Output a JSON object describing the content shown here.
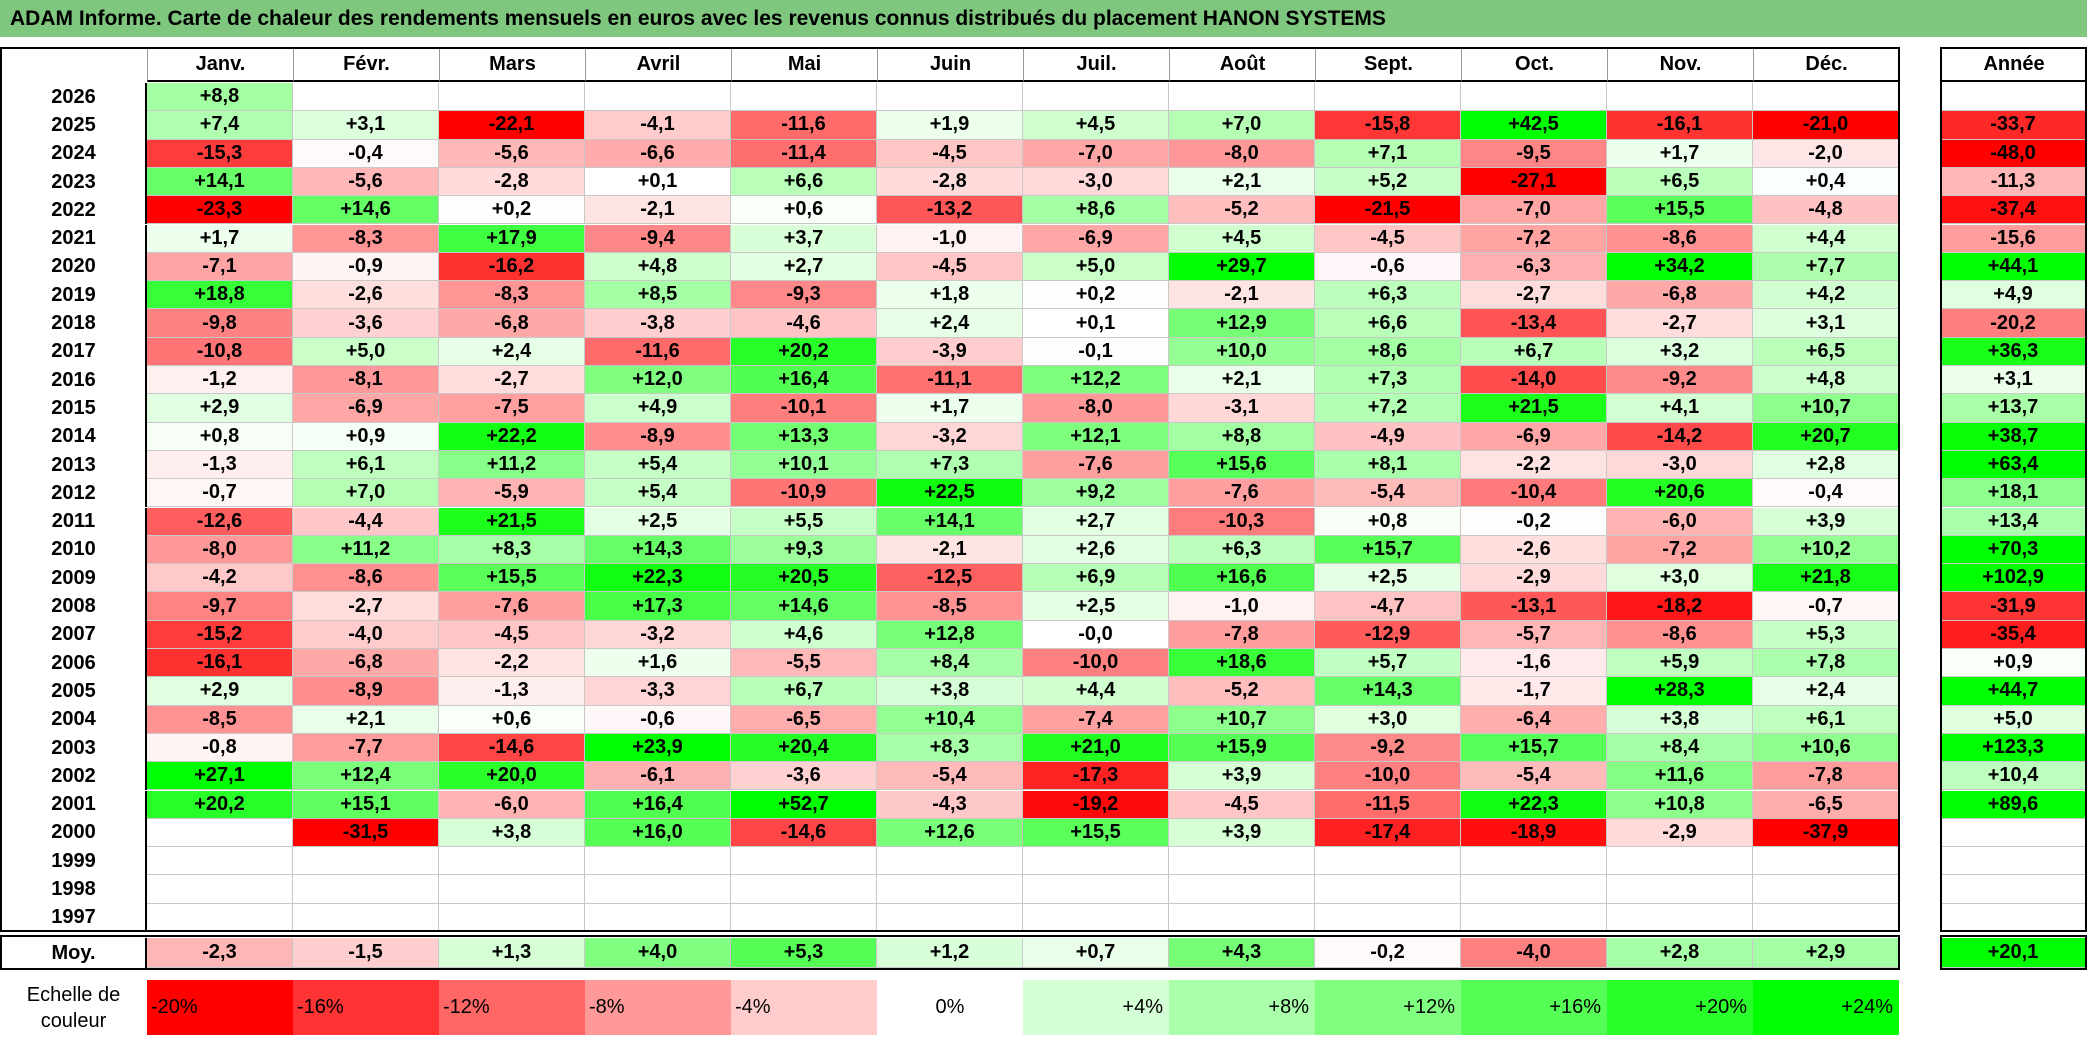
{
  "title": "ADAM Informe. Carte de chaleur des rendements mensuels en euros avec les revenus connus distribués du placement HANON SYSTEMS",
  "colors": {
    "title_bg": "#7fc77f",
    "neg_strong": "#ff0000",
    "pos_strong": "#00ff00",
    "neutral": "#ffffff"
  },
  "chart_data": {
    "type": "heatmap",
    "title": "ADAM Informe. Carte de chaleur des rendements mensuels en euros avec les revenus connus distribués du placement HANON SYSTEMS",
    "columns": [
      "Janv.",
      "Févr.",
      "Mars",
      "Avril",
      "Mai",
      "Juin",
      "Juil.",
      "Août",
      "Sept.",
      "Oct.",
      "Nov.",
      "Déc."
    ],
    "year_label": "Année",
    "rows": [
      {
        "year": "2026",
        "values": [
          "+8,8",
          "",
          "",
          "",
          "",
          "",
          "",
          "",
          "",
          "",
          "",
          ""
        ],
        "annual": ""
      },
      {
        "year": "2025",
        "values": [
          "+7,4",
          "+3,1",
          "-22,1",
          "-4,1",
          "-11,6",
          "+1,9",
          "+4,5",
          "+7,0",
          "-15,8",
          "+42,5",
          "-16,1",
          "-21,0"
        ],
        "annual": "-33,7"
      },
      {
        "year": "2024",
        "values": [
          "-15,3",
          "-0,4",
          "-5,6",
          "-6,6",
          "-11,4",
          "-4,5",
          "-7,0",
          "-8,0",
          "+7,1",
          "-9,5",
          "+1,7",
          "-2,0"
        ],
        "annual": "-48,0"
      },
      {
        "year": "2023",
        "values": [
          "+14,1",
          "-5,6",
          "-2,8",
          "+0,1",
          "+6,6",
          "-2,8",
          "-3,0",
          "+2,1",
          "+5,2",
          "-27,1",
          "+6,5",
          "+0,4"
        ],
        "annual": "-11,3"
      },
      {
        "year": "2022",
        "values": [
          "-23,3",
          "+14,6",
          "+0,2",
          "-2,1",
          "+0,6",
          "-13,2",
          "+8,6",
          "-5,2",
          "-21,5",
          "-7,0",
          "+15,5",
          "-4,8"
        ],
        "annual": "-37,4"
      },
      {
        "year": "2021",
        "values": [
          "+1,7",
          "-8,3",
          "+17,9",
          "-9,4",
          "+3,7",
          "-1,0",
          "-6,9",
          "+4,5",
          "-4,5",
          "-7,2",
          "-8,6",
          "+4,4"
        ],
        "annual": "-15,6"
      },
      {
        "year": "2020",
        "values": [
          "-7,1",
          "-0,9",
          "-16,2",
          "+4,8",
          "+2,7",
          "-4,5",
          "+5,0",
          "+29,7",
          "-0,6",
          "-6,3",
          "+34,2",
          "+7,7"
        ],
        "annual": "+44,1"
      },
      {
        "year": "2019",
        "values": [
          "+18,8",
          "-2,6",
          "-8,3",
          "+8,5",
          "-9,3",
          "+1,8",
          "+0,2",
          "-2,1",
          "+6,3",
          "-2,7",
          "-6,8",
          "+4,2"
        ],
        "annual": "+4,9"
      },
      {
        "year": "2018",
        "values": [
          "-9,8",
          "-3,6",
          "-6,8",
          "-3,8",
          "-4,6",
          "+2,4",
          "+0,1",
          "+12,9",
          "+6,6",
          "-13,4",
          "-2,7",
          "+3,1"
        ],
        "annual": "-20,2"
      },
      {
        "year": "2017",
        "values": [
          "-10,8",
          "+5,0",
          "+2,4",
          "-11,6",
          "+20,2",
          "-3,9",
          "-0,1",
          "+10,0",
          "+8,6",
          "+6,7",
          "+3,2",
          "+6,5"
        ],
        "annual": "+36,3"
      },
      {
        "year": "2016",
        "values": [
          "-1,2",
          "-8,1",
          "-2,7",
          "+12,0",
          "+16,4",
          "-11,1",
          "+12,2",
          "+2,1",
          "+7,3",
          "-14,0",
          "-9,2",
          "+4,8"
        ],
        "annual": "+3,1"
      },
      {
        "year": "2015",
        "values": [
          "+2,9",
          "-6,9",
          "-7,5",
          "+4,9",
          "-10,1",
          "+1,7",
          "-8,0",
          "-3,1",
          "+7,2",
          "+21,5",
          "+4,1",
          "+10,7"
        ],
        "annual": "+13,7"
      },
      {
        "year": "2014",
        "values": [
          "+0,8",
          "+0,9",
          "+22,2",
          "-8,9",
          "+13,3",
          "-3,2",
          "+12,1",
          "+8,8",
          "-4,9",
          "-6,9",
          "-14,2",
          "+20,7"
        ],
        "annual": "+38,7"
      },
      {
        "year": "2013",
        "values": [
          "-1,3",
          "+6,1",
          "+11,2",
          "+5,4",
          "+10,1",
          "+7,3",
          "-7,6",
          "+15,6",
          "+8,1",
          "-2,2",
          "-3,0",
          "+2,8"
        ],
        "annual": "+63,4"
      },
      {
        "year": "2012",
        "values": [
          "-0,7",
          "+7,0",
          "-5,9",
          "+5,4",
          "-10,9",
          "+22,5",
          "+9,2",
          "-7,6",
          "-5,4",
          "-10,4",
          "+20,6",
          "-0,4"
        ],
        "annual": "+18,1"
      },
      {
        "year": "2011",
        "values": [
          "-12,6",
          "-4,4",
          "+21,5",
          "+2,5",
          "+5,5",
          "+14,1",
          "+2,7",
          "-10,3",
          "+0,8",
          "-0,2",
          "-6,0",
          "+3,9"
        ],
        "annual": "+13,4"
      },
      {
        "year": "2010",
        "values": [
          "-8,0",
          "+11,2",
          "+8,3",
          "+14,3",
          "+9,3",
          "-2,1",
          "+2,6",
          "+6,3",
          "+15,7",
          "-2,6",
          "-7,2",
          "+10,2"
        ],
        "annual": "+70,3"
      },
      {
        "year": "2009",
        "values": [
          "-4,2",
          "-8,6",
          "+15,5",
          "+22,3",
          "+20,5",
          "-12,5",
          "+6,9",
          "+16,6",
          "+2,5",
          "-2,9",
          "+3,0",
          "+21,8"
        ],
        "annual": "+102,9"
      },
      {
        "year": "2008",
        "values": [
          "-9,7",
          "-2,7",
          "-7,6",
          "+17,3",
          "+14,6",
          "-8,5",
          "+2,5",
          "-1,0",
          "-4,7",
          "-13,1",
          "-18,2",
          "-0,7"
        ],
        "annual": "-31,9"
      },
      {
        "year": "2007",
        "values": [
          "-15,2",
          "-4,0",
          "-4,5",
          "-3,2",
          "+4,6",
          "+12,8",
          "-0,0",
          "-7,8",
          "-12,9",
          "-5,7",
          "-8,6",
          "+5,3"
        ],
        "annual": "-35,4"
      },
      {
        "year": "2006",
        "values": [
          "-16,1",
          "-6,8",
          "-2,2",
          "+1,6",
          "-5,5",
          "+8,4",
          "-10,0",
          "+18,6",
          "+5,7",
          "-1,6",
          "+5,9",
          "+7,8"
        ],
        "annual": "+0,9"
      },
      {
        "year": "2005",
        "values": [
          "+2,9",
          "-8,9",
          "-1,3",
          "-3,3",
          "+6,7",
          "+3,8",
          "+4,4",
          "-5,2",
          "+14,3",
          "-1,7",
          "+28,3",
          "+2,4"
        ],
        "annual": "+44,7"
      },
      {
        "year": "2004",
        "values": [
          "-8,5",
          "+2,1",
          "+0,6",
          "-0,6",
          "-6,5",
          "+10,4",
          "-7,4",
          "+10,7",
          "+3,0",
          "-6,4",
          "+3,8",
          "+6,1"
        ],
        "annual": "+5,0"
      },
      {
        "year": "2003",
        "values": [
          "-0,8",
          "-7,7",
          "-14,6",
          "+23,9",
          "+20,4",
          "+8,3",
          "+21,0",
          "+15,9",
          "-9,2",
          "+15,7",
          "+8,4",
          "+10,6"
        ],
        "annual": "+123,3"
      },
      {
        "year": "2002",
        "values": [
          "+27,1",
          "+12,4",
          "+20,0",
          "-6,1",
          "-3,6",
          "-5,4",
          "-17,3",
          "+3,9",
          "-10,0",
          "-5,4",
          "+11,6",
          "-7,8"
        ],
        "annual": "+10,4"
      },
      {
        "year": "2001",
        "values": [
          "+20,2",
          "+15,1",
          "-6,0",
          "+16,4",
          "+52,7",
          "-4,3",
          "-19,2",
          "-4,5",
          "-11,5",
          "+22,3",
          "+10,8",
          "-6,5"
        ],
        "annual": "+89,6"
      },
      {
        "year": "2000",
        "values": [
          "",
          "-31,5",
          "+3,8",
          "+16,0",
          "-14,6",
          "+12,6",
          "+15,5",
          "+3,9",
          "-17,4",
          "-18,9",
          "-2,9",
          "-37,9"
        ],
        "annual": ""
      },
      {
        "year": "1999",
        "values": [
          "",
          "",
          "",
          "",
          "",
          "",
          "",
          "",
          "",
          "",
          "",
          ""
        ],
        "annual": ""
      },
      {
        "year": "1998",
        "values": [
          "",
          "",
          "",
          "",
          "",
          "",
          "",
          "",
          "",
          "",
          "",
          ""
        ],
        "annual": ""
      },
      {
        "year": "1997",
        "values": [
          "",
          "",
          "",
          "",
          "",
          "",
          "",
          "",
          "",
          "",
          "",
          ""
        ],
        "annual": ""
      }
    ],
    "average": {
      "label": "Moy.",
      "values": [
        "-2,3",
        "-1,5",
        "+1,3",
        "+4,0",
        "+5,3",
        "+1,2",
        "+0,7",
        "+4,3",
        "-0,2",
        "-4,0",
        "+2,8",
        "+2,9"
      ],
      "annual": "+20,1"
    },
    "scale": {
      "label_line1": "Echelle de",
      "label_line2": "couleur",
      "steps": [
        "-20%",
        "-16%",
        "-12%",
        "-8%",
        "-4%",
        "0%",
        "+4%",
        "+8%",
        "+12%",
        "+16%",
        "+20%",
        "+24%"
      ]
    },
    "monthly_color_range": [
      -20,
      24
    ],
    "annual_color_range": [
      -40,
      40
    ]
  }
}
